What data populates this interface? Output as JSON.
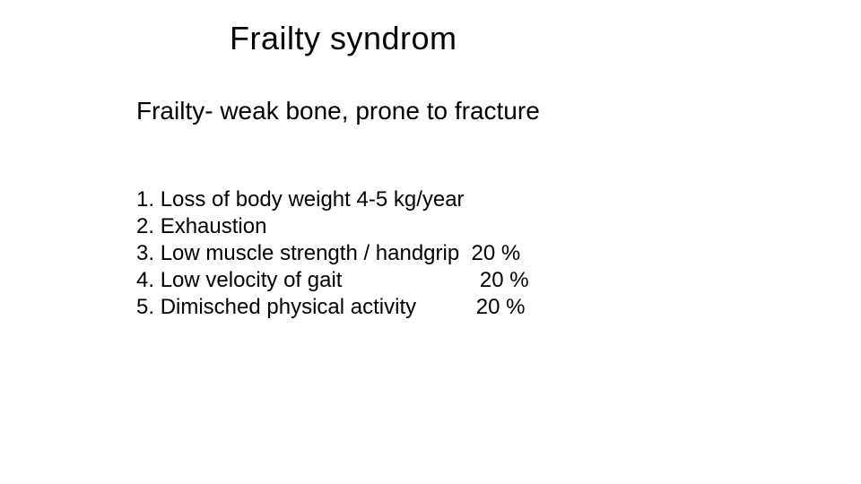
{
  "title": "Frailty  syndrom",
  "subtitle": "Frailty- weak bone, prone to fracture",
  "list": {
    "items": [
      {
        "num": "1. ",
        "label": "Loss of body weight 4-5 kg/year",
        "pct": ""
      },
      {
        "num": "2. ",
        "label": "Exhaustion",
        "pct": ""
      },
      {
        "num": "3. ",
        "label": "Low muscle strength / handgrip",
        "pad": "  ",
        "pct": "20 %"
      },
      {
        "num": "4. ",
        "label": "Low velocity of gait",
        "pad": "                       ",
        "pct": "20 %"
      },
      {
        "num": "5. ",
        "label": "Dimisched physical activity",
        "pad": "          ",
        "pct": "20 %"
      }
    ]
  },
  "style": {
    "background_color": "#ffffff",
    "text_color": "#000000",
    "title_fontsize": 36,
    "subtitle_fontsize": 28,
    "body_fontsize": 24,
    "font_family": "Arial"
  }
}
